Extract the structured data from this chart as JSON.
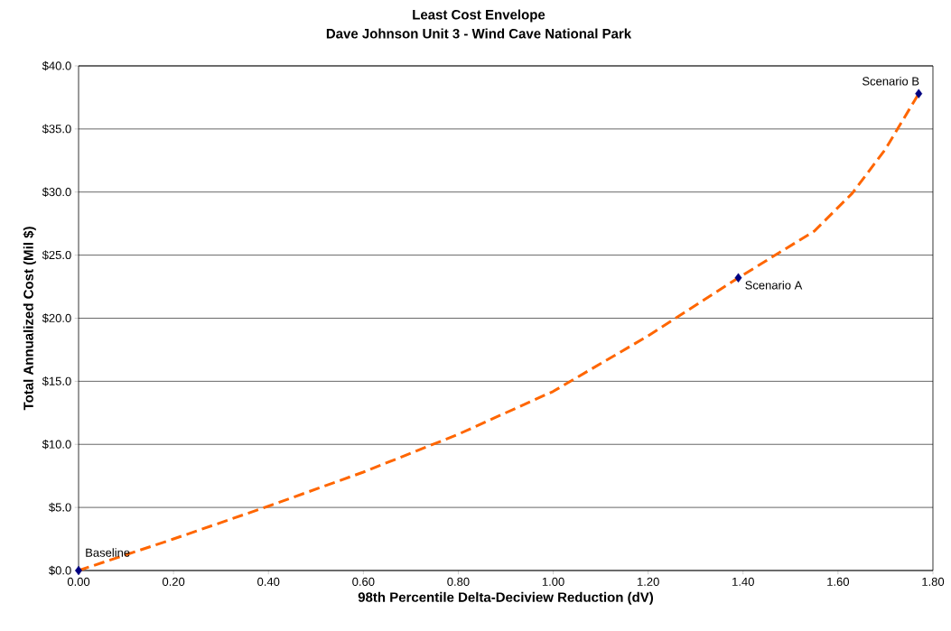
{
  "chart_data": {
    "type": "scatter",
    "title": "Least Cost Envelope",
    "subtitle": "Dave Johnson Unit 3 - Wind Cave National Park",
    "xlabel": "98th Percentile Delta-Deciview Reduction (dV)",
    "ylabel": "Total Annualized Cost (Mil $)",
    "series": [
      {
        "type": "line",
        "x": [
          0,
          0.2,
          0.4,
          0.6,
          0.8,
          1.0,
          1.2,
          1.39,
          1.55,
          1.63,
          1.7,
          1.77
        ],
        "values": [
          0,
          2.5,
          5.1,
          7.8,
          10.8,
          14.2,
          18.6,
          23.2,
          26.9,
          29.9,
          33.4,
          37.8
        ],
        "color": "#ff6600",
        "line_style": "dashed",
        "marker": "none"
      },
      {
        "x": [
          0,
          1.39,
          1.77
        ],
        "values": [
          0,
          23.2,
          37.8
        ],
        "color": "#000080",
        "marker": "diamond"
      }
    ],
    "annotations": [
      {
        "text": "Baseline",
        "x": 0,
        "y": 0
      },
      {
        "text": "Scenario A",
        "x": 1.39,
        "y": 23.2
      },
      {
        "text": "Scenario B",
        "x": 1.77,
        "y": 37.8
      }
    ],
    "xlim": [
      0,
      1.8
    ],
    "ylim": [
      0,
      40
    ],
    "xticks": [
      {
        "value": 0,
        "label": "0.00"
      },
      {
        "value": 0.2,
        "label": "0.20"
      },
      {
        "value": 0.4,
        "label": "0.40"
      },
      {
        "value": 0.6,
        "label": "0.60"
      },
      {
        "value": 0.8,
        "label": "0.80"
      },
      {
        "value": 1.0,
        "label": "1.00"
      },
      {
        "value": 1.2,
        "label": "1.20"
      },
      {
        "value": 1.4,
        "label": "1.40"
      },
      {
        "value": 1.6,
        "label": "1.60"
      },
      {
        "value": 1.8,
        "label": "1.80"
      }
    ],
    "yticks": [
      {
        "value": 0,
        "label": "$0.0"
      },
      {
        "value": 5,
        "label": "$5.0"
      },
      {
        "value": 10,
        "label": "$10.0"
      },
      {
        "value": 15,
        "label": "$15.0"
      },
      {
        "value": 20,
        "label": "$20.0"
      },
      {
        "value": 25,
        "label": "$25.0"
      },
      {
        "value": 30,
        "label": "$30.0"
      },
      {
        "value": 35,
        "label": "$35.0"
      },
      {
        "value": 40,
        "label": "$40.0"
      }
    ],
    "grid": "y"
  }
}
